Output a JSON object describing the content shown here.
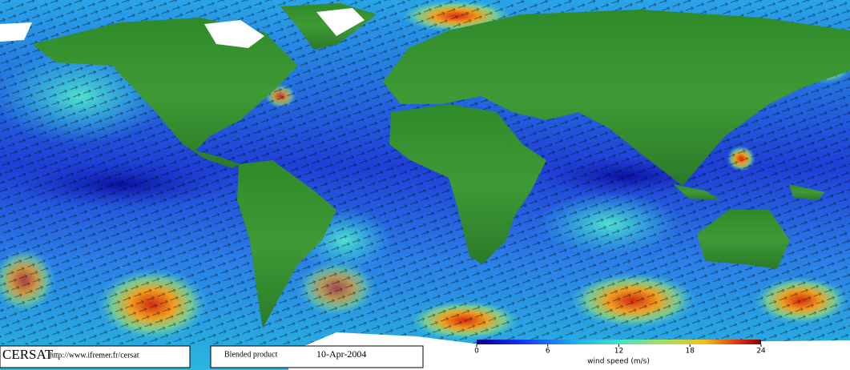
{
  "footer": {
    "logo": "CERSAT",
    "url": "http://www.ifremer.fr/cersat",
    "product": "Blended product",
    "date": "10-Apr-2004"
  },
  "colorbar": {
    "label": "wind speed (m/s)",
    "xlim": [
      0,
      24
    ],
    "xticks": [
      0,
      6,
      12,
      18,
      24
    ]
  }
}
